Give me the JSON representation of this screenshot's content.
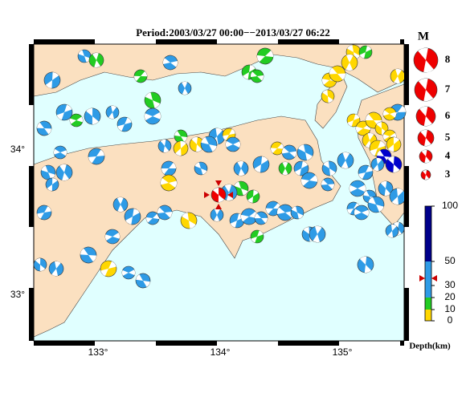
{
  "title": "Period:2003/03/27 00:00−−2013/03/27 06:22",
  "axes": {
    "lat_labels": [
      "34°",
      "33°"
    ],
    "lon_labels": [
      "133°",
      "134°",
      "135°"
    ]
  },
  "legend": {
    "title": "M",
    "magnitudes": [
      8,
      7,
      6,
      5,
      4,
      3
    ]
  },
  "colorbar": {
    "ticks": [
      100,
      50,
      30,
      20,
      10,
      0
    ],
    "label": "Depth(km)"
  }
}
